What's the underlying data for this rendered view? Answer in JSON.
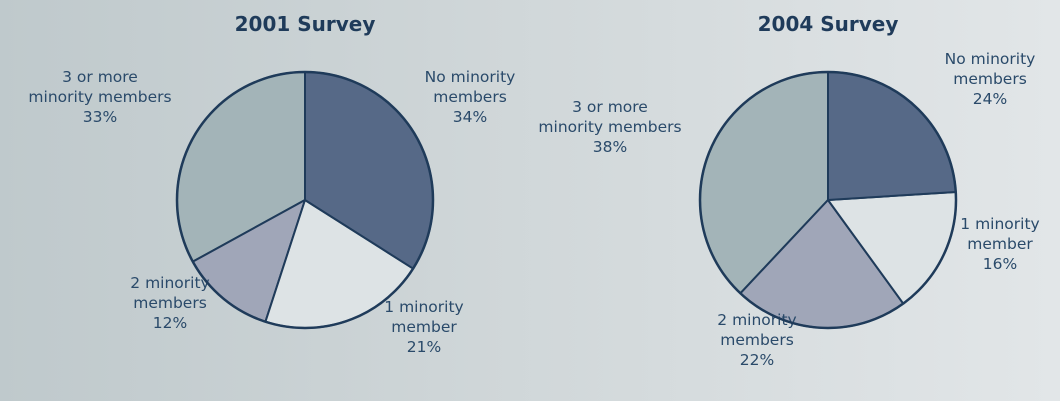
{
  "chart_data": [
    {
      "type": "pie",
      "title": "2001 Survey",
      "slices": [
        {
          "label_lines": [
            "No minority",
            "members",
            "34%"
          ],
          "value": 34,
          "color": "#566987"
        },
        {
          "label_lines": [
            "1 minority",
            "member",
            "21%"
          ],
          "value": 21,
          "color": "#dde3e5"
        },
        {
          "label_lines": [
            "2 minority",
            "members",
            "12%"
          ],
          "value": 12,
          "color": "#a0a6b8"
        },
        {
          "label_lines": [
            "3 or more",
            "minority members",
            "33%"
          ],
          "value": 33,
          "color": "#a3b4b8"
        }
      ]
    },
    {
      "type": "pie",
      "title": "2004 Survey",
      "slices": [
        {
          "label_lines": [
            "No minority",
            "members",
            "24%"
          ],
          "value": 24,
          "color": "#566987"
        },
        {
          "label_lines": [
            "1 minority",
            "member",
            "16%"
          ],
          "value": 16,
          "color": "#dde3e5"
        },
        {
          "label_lines": [
            "2 minority",
            "members",
            "22%"
          ],
          "value": 22,
          "color": "#a0a6b8"
        },
        {
          "label_lines": [
            "3 or more",
            "minority members",
            "38%"
          ],
          "value": 38,
          "color": "#a3b4b8"
        }
      ]
    }
  ]
}
